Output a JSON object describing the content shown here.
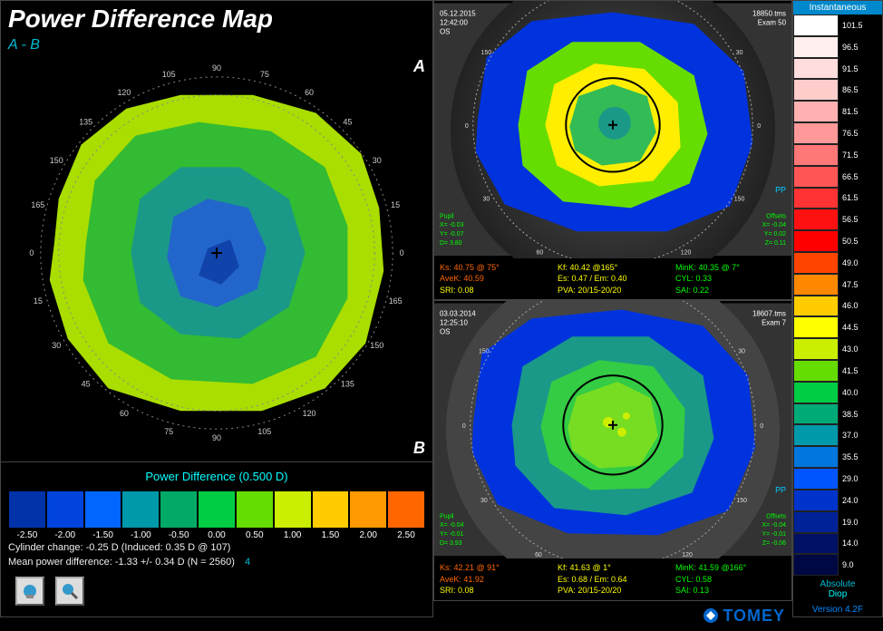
{
  "title": "Power Difference Map",
  "subtitle": "A - B",
  "cornerA": "A",
  "cornerB": "B",
  "diffScale": {
    "title": "Power Difference (0.500 D)",
    "colors": [
      "#0033aa",
      "#0044dd",
      "#0066ff",
      "#0099aa",
      "#00aa66",
      "#00cc44",
      "#66dd00",
      "#ccee00",
      "#ffcc00",
      "#ff9900",
      "#ff6600"
    ],
    "labels": [
      "-2.50",
      "-2.00",
      "-1.50",
      "-1.00",
      "-0.50",
      "0.00",
      "0.50",
      "1.00",
      "1.50",
      "2.00",
      "2.50"
    ]
  },
  "info1": "Cylinder change: -0.25 D (Induced:  0.35 D @ 107)",
  "info2": "Mean power difference: -1.33 +/-  0.34 D (N = 2560)",
  "info2_num": "4",
  "polarTicks": [
    "0",
    "15",
    "30",
    "45",
    "60",
    "75",
    "90",
    "105",
    "120",
    "135",
    "150",
    "165",
    "180",
    "195",
    "210",
    "225",
    "240",
    "255",
    "270",
    "285",
    "300",
    "315",
    "330",
    "345"
  ],
  "polarLabels": {
    "0": "0",
    "15": "15",
    "30": "30",
    "45": "45",
    "60": "60",
    "75": "75",
    "90": "90",
    "105": "105",
    "120": "120",
    "135": "135",
    "150": "150",
    "165": "165",
    "180": "0",
    "195": "15",
    "210": "30",
    "225": "45",
    "240": "60",
    "255": "75",
    "270": "90",
    "285": "105",
    "300": "120",
    "315": "135",
    "330": "150",
    "345": "165"
  },
  "examA": {
    "meta_top_left": "05.12.2015\n12:42:00\nOS",
    "meta_top_right": "18850.tms\nExam 50",
    "pupil": "Pupil\nX= -0.03\nY= -0.07\nD= 3.80",
    "offsets": "Offsets\nX= -0.04\nY= 0.02\nZ= 0.11",
    "pp": "PP",
    "ks": "Ks: 40.75 @ 75°",
    "kf": "Kf: 40.42 @165°",
    "mink": "MinK: 40.35 @ 7°",
    "avek": "AveK: 40.59",
    "er": "Es: 0.47 / Em: 0.40",
    "cyl": "CYL: 0.33",
    "sri": "SRI: 0.08",
    "pva": "PVA: 20/15-20/20",
    "sai": "SAI: 0.22"
  },
  "examB": {
    "meta_top_left": "03.03.2014\n12:25:10\nOS",
    "meta_top_right": "18607.tms\nExam 7",
    "pupil": "Pupil\nX= -0.04\nY= -0.01\nD= 3.93",
    "offsets": "Offsets\nX= -0.04\nY= -0.01\nZ= -0.06",
    "pp": "PP",
    "ks": "Ks: 42.21 @ 91°",
    "kf": "Kf: 41.63 @ 1°",
    "mink": "MinK: 41.59 @166°",
    "avek": "AveK: 41.92",
    "er": "Es: 0.68 / Em: 0.64",
    "cyl": "CYL: 0.58",
    "sri": "SRI: 0.08",
    "pva": "PVA: 20/15-20/20",
    "sai": "SAI: 0.13"
  },
  "rightScale": {
    "header": "Instantaneous",
    "entries": [
      {
        "c": "#ffffff",
        "v": "101.5"
      },
      {
        "c": "#ffeeee",
        "v": "96.5"
      },
      {
        "c": "#ffdddd",
        "v": "91.5"
      },
      {
        "c": "#ffcccc",
        "v": "86.5"
      },
      {
        "c": "#ffb0b0",
        "v": "81.5"
      },
      {
        "c": "#ff9999",
        "v": "76.5"
      },
      {
        "c": "#ff7777",
        "v": "71.5"
      },
      {
        "c": "#ff5555",
        "v": "66.5"
      },
      {
        "c": "#ff3333",
        "v": "61.5"
      },
      {
        "c": "#ff1111",
        "v": "56.5"
      },
      {
        "c": "#ff0000",
        "v": "50.5"
      },
      {
        "c": "#ff4400",
        "v": "49.0"
      },
      {
        "c": "#ff8800",
        "v": "47.5"
      },
      {
        "c": "#ffcc00",
        "v": "46.0"
      },
      {
        "c": "#ffff00",
        "v": "44.5"
      },
      {
        "c": "#ccee00",
        "v": "43.0"
      },
      {
        "c": "#66dd00",
        "v": "41.5"
      },
      {
        "c": "#00cc44",
        "v": "40.0"
      },
      {
        "c": "#00aa77",
        "v": "38.5"
      },
      {
        "c": "#0099aa",
        "v": "37.0"
      },
      {
        "c": "#0077dd",
        "v": "35.5"
      },
      {
        "c": "#0055ff",
        "v": "29.0"
      },
      {
        "c": "#0033cc",
        "v": "24.0"
      },
      {
        "c": "#002299",
        "v": "19.0"
      },
      {
        "c": "#001166",
        "v": "14.0"
      },
      {
        "c": "#000844",
        "v": "9.0"
      }
    ],
    "absolute": "Absolute",
    "diop": "Diop"
  },
  "logo": "TOMEY",
  "version": "Version 4.2F"
}
